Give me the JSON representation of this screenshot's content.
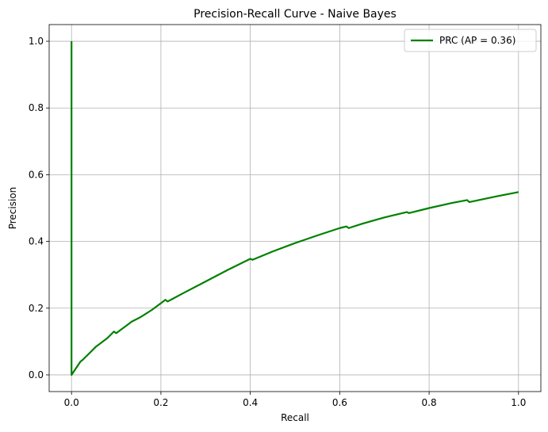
{
  "chart_data": {
    "type": "line",
    "title": "Precision-Recall Curve - Naive Bayes",
    "xlabel": "Recall",
    "ylabel": "Precision",
    "xlim": [
      -0.05,
      1.05
    ],
    "ylim": [
      -0.05,
      1.05
    ],
    "xticks": [
      "0.0",
      "0.2",
      "0.4",
      "0.6",
      "0.8",
      "1.0"
    ],
    "yticks": [
      "0.0",
      "0.2",
      "0.4",
      "0.6",
      "0.8",
      "1.0"
    ],
    "grid": true,
    "legend_position": "top-right",
    "series": [
      {
        "name": "PRC (AP = 0.36)",
        "color": "#008000",
        "points": [
          [
            0.0,
            1.0
          ],
          [
            0.0,
            0.0
          ],
          [
            0.005,
            0.01
          ],
          [
            0.015,
            0.03
          ],
          [
            0.02,
            0.04
          ],
          [
            0.025,
            0.045
          ],
          [
            0.04,
            0.065
          ],
          [
            0.055,
            0.085
          ],
          [
            0.06,
            0.09
          ],
          [
            0.08,
            0.11
          ],
          [
            0.095,
            0.13
          ],
          [
            0.1,
            0.125
          ],
          [
            0.11,
            0.135
          ],
          [
            0.125,
            0.15
          ],
          [
            0.13,
            0.155
          ],
          [
            0.135,
            0.16
          ],
          [
            0.15,
            0.17
          ],
          [
            0.16,
            0.178
          ],
          [
            0.18,
            0.195
          ],
          [
            0.2,
            0.215
          ],
          [
            0.21,
            0.225
          ],
          [
            0.215,
            0.22
          ],
          [
            0.25,
            0.245
          ],
          [
            0.3,
            0.28
          ],
          [
            0.35,
            0.315
          ],
          [
            0.4,
            0.348
          ],
          [
            0.405,
            0.345
          ],
          [
            0.45,
            0.37
          ],
          [
            0.5,
            0.395
          ],
          [
            0.55,
            0.418
          ],
          [
            0.6,
            0.44
          ],
          [
            0.615,
            0.445
          ],
          [
            0.62,
            0.44
          ],
          [
            0.65,
            0.453
          ],
          [
            0.7,
            0.472
          ],
          [
            0.75,
            0.488
          ],
          [
            0.755,
            0.485
          ],
          [
            0.8,
            0.5
          ],
          [
            0.85,
            0.515
          ],
          [
            0.885,
            0.524
          ],
          [
            0.89,
            0.518
          ],
          [
            0.95,
            0.535
          ],
          [
            1.0,
            0.548
          ]
        ]
      }
    ]
  }
}
